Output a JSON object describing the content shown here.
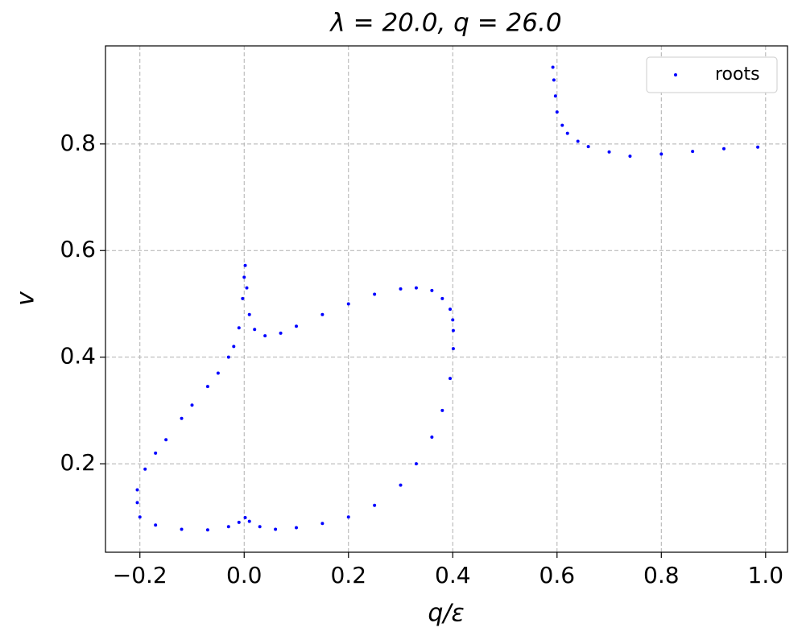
{
  "chart_data": {
    "type": "scatter",
    "title": "λ = 20.0, q = 26.0",
    "xlabel": "q/ε",
    "ylabel": "v",
    "xlim": [
      -0.266,
      1.042
    ],
    "ylim": [
      0.034,
      0.984
    ],
    "xticks": [
      {
        "value": -0.2,
        "label": "−0.2"
      },
      {
        "value": 0,
        "label": "0.0"
      },
      0.2,
      0.4,
      0.6,
      0.8,
      {
        "value": 1,
        "label": "1.0"
      }
    ],
    "yticks": [
      0.2,
      0.4,
      0.6,
      0.8
    ],
    "grid": true,
    "legend": "upper right",
    "series": [
      {
        "name": "roots",
        "color": "#0000ff",
        "x": [
          0.592,
          0.594,
          0.597,
          0.6,
          0.61,
          0.62,
          0.64,
          0.66,
          0.7,
          0.74,
          0.8,
          0.86,
          0.92,
          0.985,
          -0.205,
          -0.19,
          -0.17,
          -0.15,
          -0.12,
          -0.1,
          -0.07,
          -0.05,
          -0.03,
          -0.02,
          -0.01,
          -0.003,
          0,
          0.002,
          0.005,
          0.01,
          0.02,
          0.04,
          0.07,
          0.1,
          0.15,
          0.2,
          0.25,
          0.3,
          0.33,
          0.36,
          0.38,
          0.395,
          0.4,
          0.401,
          0.401,
          0.395,
          0.38,
          0.36,
          0.33,
          0.3,
          0.25,
          0.2,
          0.15,
          0.1,
          0.06,
          0.03,
          0.01,
          0.002,
          -0.01,
          -0.03,
          -0.07,
          -0.12,
          -0.17,
          -0.2,
          -0.205
        ],
        "y": [
          0.944,
          0.92,
          0.89,
          0.86,
          0.835,
          0.82,
          0.805,
          0.795,
          0.785,
          0.777,
          0.781,
          0.786,
          0.791,
          0.794,
          0.151,
          0.19,
          0.22,
          0.245,
          0.285,
          0.31,
          0.345,
          0.37,
          0.4,
          0.42,
          0.455,
          0.51,
          0.55,
          0.572,
          0.53,
          0.48,
          0.452,
          0.44,
          0.445,
          0.458,
          0.48,
          0.5,
          0.518,
          0.528,
          0.53,
          0.525,
          0.51,
          0.49,
          0.47,
          0.45,
          0.416,
          0.36,
          0.3,
          0.25,
          0.2,
          0.16,
          0.122,
          0.1,
          0.088,
          0.08,
          0.077,
          0.082,
          0.092,
          0.099,
          0.09,
          0.082,
          0.076,
          0.077,
          0.085,
          0.1,
          0.127
        ]
      }
    ]
  }
}
